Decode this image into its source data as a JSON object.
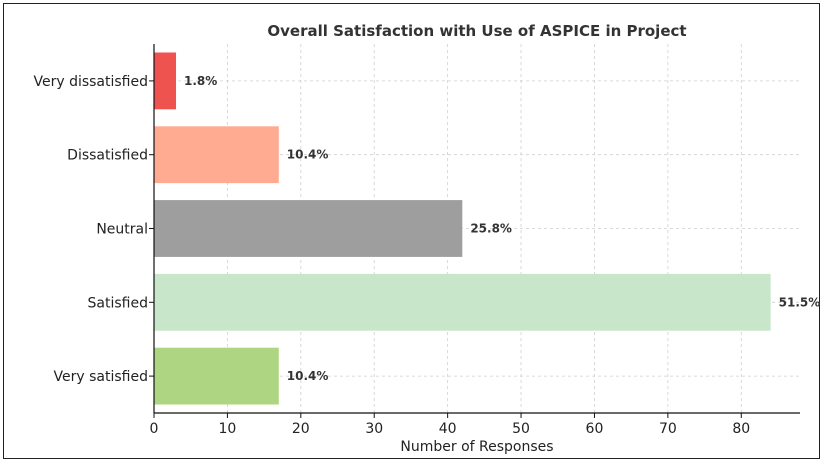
{
  "chart_data": {
    "type": "bar",
    "orientation": "horizontal",
    "title": "Overall Satisfaction with Use of ASPICE in Project",
    "xlabel": "Number of Responses",
    "ylabel": "",
    "xlim": [
      0,
      88
    ],
    "xticks": [
      "0",
      "10",
      "20",
      "30",
      "40",
      "50",
      "60",
      "70",
      "80"
    ],
    "grid": true,
    "categories": [
      "Very dissatisfied",
      "Dissatisfied",
      "Neutral",
      "Satisfied",
      "Very satisfied"
    ],
    "values": [
      3,
      17,
      42,
      84,
      17
    ],
    "data_labels": [
      "1.8%",
      "10.4%",
      "25.8%",
      "51.5%",
      "10.4%"
    ],
    "colors": [
      "#ef5350",
      "#ffab91",
      "#9e9e9e",
      "#c8e6c9",
      "#aed581"
    ]
  }
}
